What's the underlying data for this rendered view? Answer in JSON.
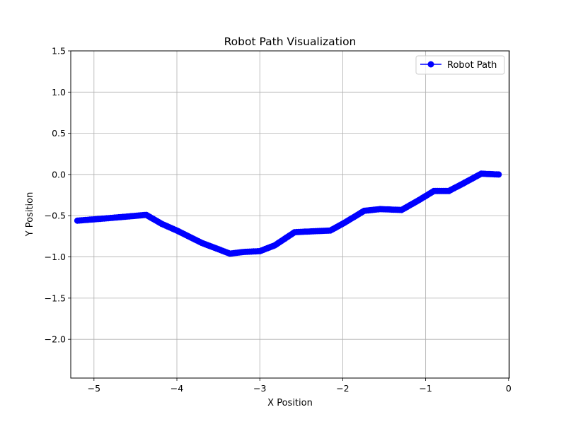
{
  "chart_data": {
    "type": "line",
    "title": "Robot Path Visualization",
    "xlabel": "X Position",
    "ylabel": "Y Position",
    "xlim": [
      -5.28,
      0.01
    ],
    "ylim": [
      -2.47,
      1.5
    ],
    "xticks": [
      -5,
      -4,
      -3,
      -2,
      -1,
      0
    ],
    "xtick_labels": [
      "−5",
      "−4",
      "−3",
      "−2",
      "−1",
      "0"
    ],
    "yticks": [
      1.5,
      1.0,
      0.5,
      0.0,
      -0.5,
      -1.0,
      -1.5,
      -2.0
    ],
    "ytick_labels": [
      "1.5",
      "1.0",
      "0.5",
      "0.0",
      "−0.5",
      "−1.0",
      "−1.5",
      "−2.0"
    ],
    "grid": true,
    "legend": {
      "placement": "top-right",
      "entries": [
        "Robot Path"
      ]
    },
    "series": [
      {
        "name": "Robot Path",
        "color": "#0000ff",
        "marker": "circle",
        "waypoints": [
          [
            -0.12,
            0.0
          ],
          [
            -0.33,
            0.01
          ],
          [
            -0.55,
            -0.11
          ],
          [
            -0.72,
            -0.2
          ],
          [
            -0.9,
            -0.2
          ],
          [
            -1.08,
            -0.31
          ],
          [
            -1.29,
            -0.43
          ],
          [
            -1.55,
            -0.42
          ],
          [
            -1.74,
            -0.44
          ],
          [
            -1.97,
            -0.58
          ],
          [
            -2.15,
            -0.68
          ],
          [
            -2.38,
            -0.69
          ],
          [
            -2.58,
            -0.7
          ],
          [
            -2.82,
            -0.86
          ],
          [
            -3.0,
            -0.93
          ],
          [
            -3.2,
            -0.94
          ],
          [
            -3.36,
            -0.96
          ],
          [
            -3.7,
            -0.83
          ],
          [
            -4.0,
            -0.68
          ],
          [
            -4.18,
            -0.6
          ],
          [
            -4.37,
            -0.49
          ],
          [
            -4.6,
            -0.51
          ],
          [
            -4.95,
            -0.54
          ],
          [
            -5.2,
            -0.56
          ]
        ]
      }
    ]
  }
}
